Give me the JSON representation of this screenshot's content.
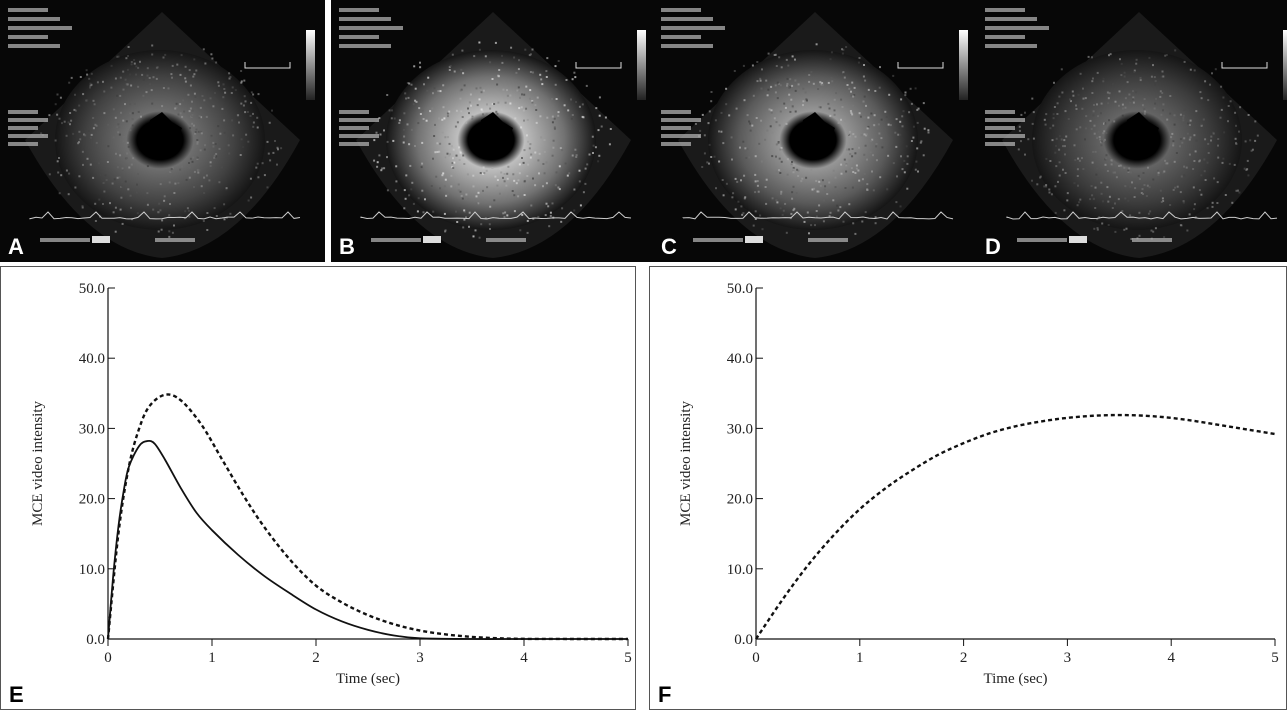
{
  "echo_panels": [
    {
      "label": "A",
      "variant": "baseline"
    },
    {
      "label": "B",
      "variant": "bright"
    },
    {
      "label": "C",
      "variant": "medium"
    },
    {
      "label": "D",
      "variant": "faded"
    }
  ],
  "colors": {
    "echo_background": "#070707",
    "curve": "#111111",
    "frame": "#555555"
  },
  "chart_data": [
    {
      "panel_label": "E",
      "type": "line",
      "xlabel": "Time (sec)",
      "ylabel": "MCE video intensity",
      "xlim": [
        0,
        5
      ],
      "ylim": [
        0,
        50
      ],
      "x_ticks": [
        0,
        1,
        2,
        3,
        4,
        5
      ],
      "x_tick_labels": [
        "0",
        "1",
        "2",
        "3",
        "4",
        "5"
      ],
      "y_ticks": [
        0,
        10,
        20,
        30,
        40,
        50
      ],
      "y_tick_labels": [
        "0.0",
        "10.0",
        "20.0",
        "30.0",
        "40.0",
        "50.0"
      ],
      "grid": false,
      "series": [
        {
          "style": "dashed",
          "x": [
            0,
            0.1,
            0.2,
            0.3,
            0.4,
            0.55,
            0.7,
            0.9,
            1.1,
            1.3,
            1.5,
            1.75,
            2.0,
            2.25,
            2.5,
            2.75,
            3.0,
            3.25,
            3.5,
            3.75,
            4.0,
            4.5,
            5.0
          ],
          "y": [
            0,
            15,
            24.5,
            30,
            33.2,
            34.8,
            34,
            30.5,
            25.5,
            20.5,
            16,
            11.3,
            7.6,
            5.2,
            3.4,
            2.1,
            1.2,
            0.65,
            0.3,
            0.1,
            0.02,
            0,
            0
          ]
        },
        {
          "style": "solid",
          "x": [
            0,
            0.05,
            0.1,
            0.15,
            0.2,
            0.3,
            0.38,
            0.45,
            0.55,
            0.7,
            0.85,
            1.0,
            1.25,
            1.5,
            1.75,
            2.0,
            2.25,
            2.5,
            2.75,
            3.0,
            3.5,
            4.0,
            5.0
          ],
          "y": [
            0,
            9,
            16,
            21,
            24.5,
            27.5,
            28.2,
            27.8,
            25.5,
            21.5,
            18,
            15.5,
            12,
            9,
            6.5,
            4.2,
            2.5,
            1.3,
            0.5,
            0.1,
            0,
            0,
            0
          ]
        }
      ]
    },
    {
      "panel_label": "F",
      "type": "line",
      "xlabel": "Time (sec)",
      "ylabel": "MCE video intensity",
      "xlim": [
        0,
        5
      ],
      "ylim": [
        0,
        50
      ],
      "x_ticks": [
        0,
        1,
        2,
        3,
        4,
        5
      ],
      "x_tick_labels": [
        "0",
        "1",
        "2",
        "3",
        "4",
        "5"
      ],
      "y_ticks": [
        0,
        10,
        20,
        30,
        40,
        50
      ],
      "y_tick_labels": [
        "0.0",
        "10.0",
        "20.0",
        "30.0",
        "40.0",
        "50.0"
      ],
      "grid": false,
      "series": [
        {
          "style": "dashed",
          "x": [
            0,
            0.25,
            0.5,
            0.75,
            1.0,
            1.25,
            1.5,
            1.75,
            2.0,
            2.25,
            2.5,
            2.75,
            3.0,
            3.25,
            3.5,
            3.75,
            4.0,
            4.25,
            4.5,
            4.75,
            5.0
          ],
          "y": [
            0,
            5.5,
            10.5,
            14.8,
            18.5,
            21.5,
            24,
            26.2,
            27.9,
            29.3,
            30.3,
            31,
            31.5,
            31.8,
            31.9,
            31.8,
            31.5,
            31,
            30.4,
            29.8,
            29.2
          ]
        }
      ]
    }
  ]
}
